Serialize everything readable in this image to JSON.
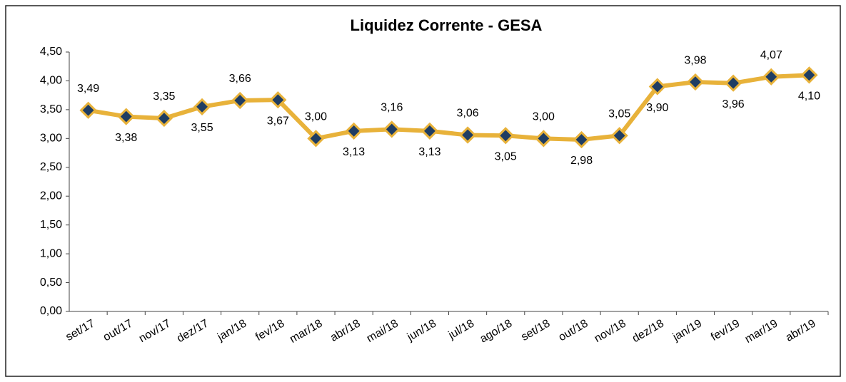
{
  "chart_data": {
    "type": "line",
    "title": "Liquidez Corrente  - GESA",
    "categories": [
      "set/17",
      "out/17",
      "nov/17",
      "dez/17",
      "jan/18",
      "fev/18",
      "mar/18",
      "abr/18",
      "mai/18",
      "jun/18",
      "jul/18",
      "ago/18",
      "set/18",
      "out/18",
      "nov/18",
      "dez/18",
      "jan/19",
      "fev/19",
      "mar/19",
      "abr/19"
    ],
    "series": [
      {
        "name": "Liquidez Corrente",
        "color": "#e8b23a",
        "marker_color": "#1f3d63",
        "values": [
          3.49,
          3.38,
          3.35,
          3.55,
          3.66,
          3.67,
          3.0,
          3.13,
          3.16,
          3.13,
          3.06,
          3.05,
          3.0,
          2.98,
          3.05,
          3.9,
          3.98,
          3.96,
          4.07,
          4.1
        ],
        "value_labels": [
          "3,49",
          "3,38",
          "3,35",
          "3,55",
          "3,66",
          "3,67",
          "3,00",
          "3,13",
          "3,16",
          "3,13",
          "3,06",
          "3,05",
          "3,00",
          "2,98",
          "3,05",
          "3,90",
          "3,98",
          "3,96",
          "4,07",
          "4,10"
        ]
      }
    ],
    "ylim": [
      0,
      4.5
    ],
    "yticks": [
      {
        "value": 0,
        "label": "0,00"
      },
      {
        "value": 0.5,
        "label": "0,50"
      },
      {
        "value": 1,
        "label": "1,00"
      },
      {
        "value": 1.5,
        "label": "1,50"
      },
      {
        "value": 2,
        "label": "2,00"
      },
      {
        "value": 2.5,
        "label": "2,50"
      },
      {
        "value": 3,
        "label": "3,00"
      },
      {
        "value": 3.5,
        "label": "3,50"
      },
      {
        "value": 4,
        "label": "4,00"
      },
      {
        "value": 4.5,
        "label": "4,50"
      }
    ],
    "grid": false
  }
}
